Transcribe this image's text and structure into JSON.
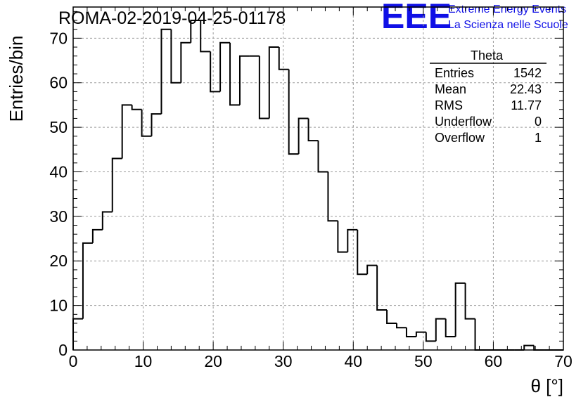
{
  "chart_data": {
    "type": "histogram",
    "title": "ROMA-02-2019-04-25-01178",
    "xlabel": "θ [°]",
    "ylabel": "Entries/bin",
    "xlim": [
      0,
      70
    ],
    "ylim": [
      0,
      77
    ],
    "xticks": [
      0,
      10,
      20,
      30,
      40,
      50,
      60,
      70
    ],
    "yticks": [
      0,
      10,
      20,
      30,
      40,
      50,
      60,
      70
    ],
    "grid": true,
    "bin_width": 1.4,
    "x": [
      0,
      1.4,
      2.8,
      4.2,
      5.6,
      7.0,
      8.4,
      9.8,
      11.2,
      12.6,
      14.0,
      15.4,
      16.8,
      18.2,
      19.6,
      21.0,
      22.4,
      23.8,
      25.2,
      26.6,
      28.0,
      29.4,
      30.8,
      32.2,
      33.6,
      35.0,
      36.4,
      37.8,
      39.2,
      40.6,
      42.0,
      43.4,
      44.8,
      46.2,
      47.6,
      49.0,
      50.4,
      51.8,
      53.2,
      54.6,
      56.0,
      57.4,
      58.8,
      60.2,
      61.6,
      63.0,
      64.4,
      65.8,
      67.2,
      68.6
    ],
    "values": [
      7,
      24,
      27,
      31,
      43,
      55,
      54,
      48,
      53,
      72,
      60,
      69,
      74,
      67,
      58,
      69,
      55,
      66,
      66,
      52,
      68,
      63,
      44,
      52,
      47,
      40,
      29,
      22,
      27,
      17,
      19,
      9,
      6,
      5,
      3,
      4,
      2,
      7,
      3,
      15,
      7,
      0,
      0,
      0,
      0,
      0,
      1,
      0,
      0,
      0
    ],
    "stats": {
      "name": "Theta",
      "rows": [
        {
          "label": "Entries",
          "value": "1542"
        },
        {
          "label": "Mean",
          "value": "22.43"
        },
        {
          "label": "RMS",
          "value": "11.77"
        },
        {
          "label": "Underflow",
          "value": "0"
        },
        {
          "label": "Overflow",
          "value": "1"
        }
      ]
    }
  },
  "logo": {
    "mark": "EEE",
    "line1": "Extreme Energy Events",
    "line2": "La Scienza nelle Scuole",
    "color": "#1010e6"
  }
}
